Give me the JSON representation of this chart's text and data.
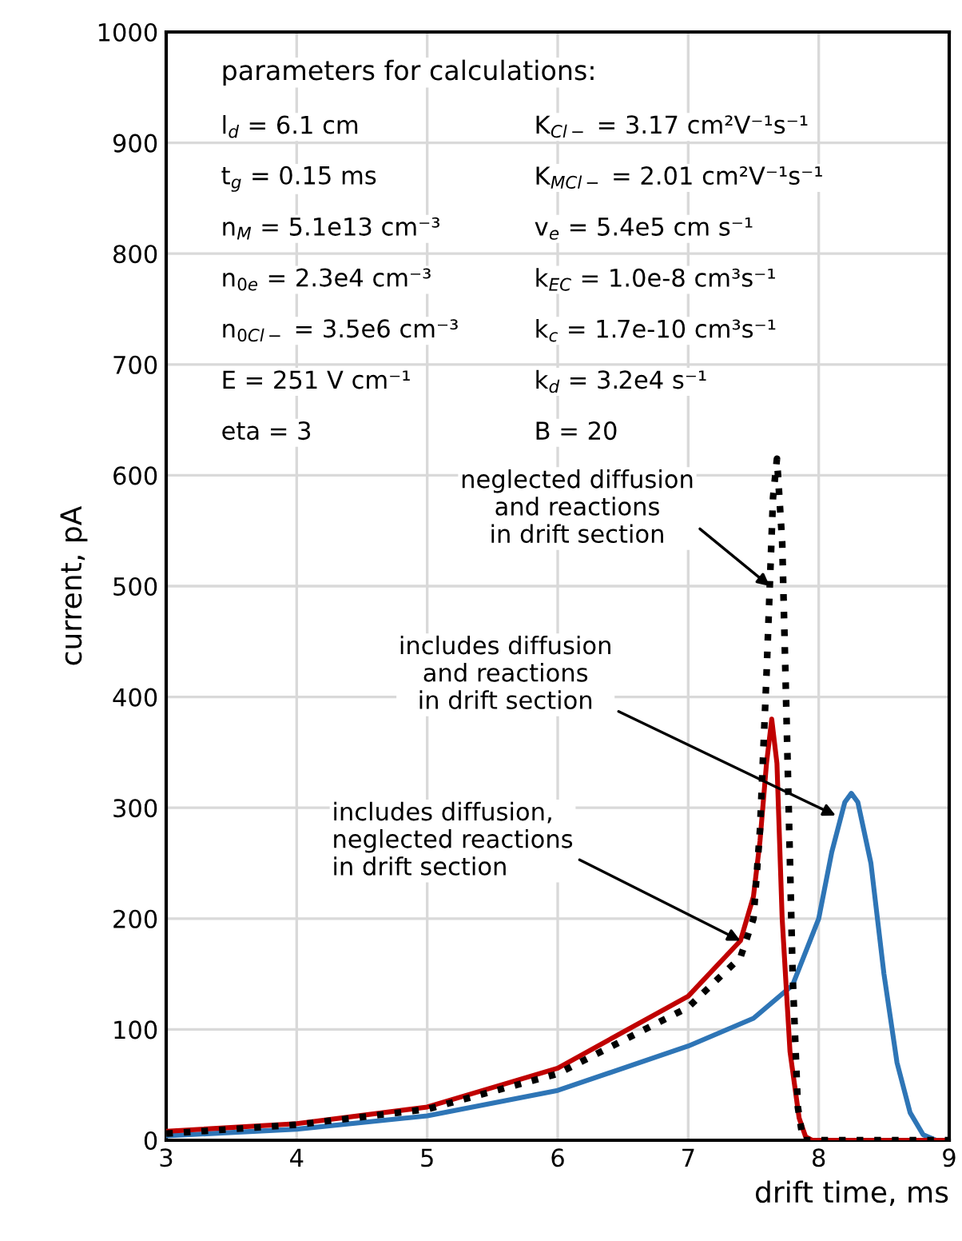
{
  "chart_data": {
    "type": "line",
    "xlabel": "drift time, ms",
    "ylabel": "current, pA",
    "xlim": [
      3,
      9
    ],
    "xticks": [
      3,
      4,
      5,
      6,
      7,
      8,
      9
    ],
    "ylim": [
      0,
      1000
    ],
    "yticks": [
      0,
      100,
      200,
      300,
      400,
      500,
      600,
      700,
      800,
      900,
      1000
    ],
    "grid": true,
    "marker": "none",
    "series": [
      {
        "color": "#2e75b6",
        "line_style": "solid",
        "x": [
          3,
          4,
          5,
          6,
          7,
          7.5,
          7.8,
          8.0,
          8.1,
          8.2,
          8.25,
          8.3,
          8.4,
          8.5,
          8.6,
          8.7,
          8.8,
          8.9,
          9
        ],
        "values": [
          4,
          10,
          22,
          45,
          85,
          110,
          140,
          200,
          260,
          305,
          313,
          305,
          250,
          150,
          70,
          25,
          5,
          0,
          0
        ]
      },
      {
        "color": "#c00000",
        "line_style": "solid",
        "x": [
          3,
          4,
          5,
          6,
          7,
          7.4,
          7.5,
          7.55,
          7.6,
          7.64,
          7.68,
          7.72,
          7.78,
          7.85,
          7.9,
          7.95,
          9
        ],
        "values": [
          8,
          15,
          30,
          65,
          130,
          180,
          220,
          270,
          340,
          380,
          340,
          200,
          80,
          20,
          3,
          0,
          0
        ]
      },
      {
        "color": "#000000",
        "line_style": "dotted",
        "x": [
          3,
          4,
          5,
          6,
          7,
          7.4,
          7.5,
          7.55,
          7.6,
          7.625,
          7.65,
          7.68,
          7.72,
          7.76,
          7.8,
          7.84,
          7.88,
          9
        ],
        "values": [
          6,
          14,
          28,
          60,
          120,
          165,
          200,
          280,
          420,
          500,
          580,
          615,
          540,
          350,
          150,
          30,
          0,
          0
        ]
      }
    ],
    "annotations": [
      "parameters for calculations:",
      "l$_{d}$ = 6.1 cm",
      "K$_{Cl−}$ = 3.17 cm²V⁻¹s⁻¹",
      "t$_{g}$ = 0.15 ms",
      "K$_{MCl−}$ = 2.01 cm²V⁻¹s⁻¹",
      "n$_{M}$ = 5.1e13 cm⁻³",
      "v$_{e}$ = 5.4e5 cm s⁻¹",
      "n$_{0e}$ = 2.3e4 cm⁻³",
      "k$_{EC}$ = 1.0e-8 cm³s⁻¹",
      "n$_{0Cl−}$ = 3.5e6 cm⁻³",
      "k$_{c}$ = 1.7e-10 cm³s⁻¹",
      "E = 251 V cm⁻¹",
      "k$_{d}$ = 3.2e4 s⁻¹",
      "eta = 3",
      "B = 20",
      {
        "text": "neglected diffusion\nand reactions\nin drift section",
        "x": 7.625,
        "y": 500
      },
      {
        "text": "includes diffusion\nand reactions\nin drift section",
        "x": 8.13,
        "y": 293
      },
      {
        "text": "includes diffusion,\nneglected reactions\nin drift section",
        "x": 7.4,
        "y": 180
      }
    ]
  }
}
